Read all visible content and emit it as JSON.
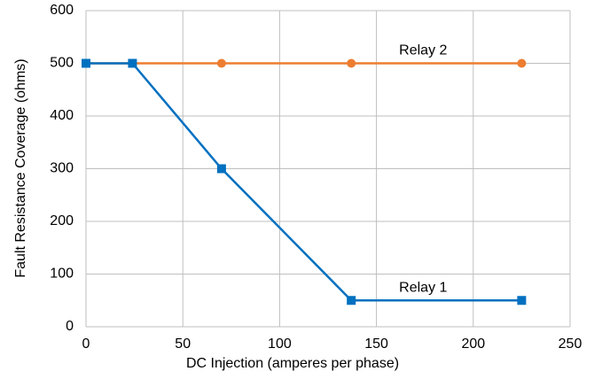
{
  "chart_data": {
    "type": "line",
    "xlabel": "DC Injection (amperes per phase)",
    "ylabel": "Fault Resistance Coverage (ohms)",
    "xlim": [
      0,
      250
    ],
    "xticks": [
      0,
      50,
      100,
      150,
      200,
      250
    ],
    "ylim": [
      0,
      600
    ],
    "yticks": [
      0,
      100,
      200,
      300,
      400,
      500,
      600
    ],
    "grid": true,
    "series": [
      {
        "name": "Relay 1",
        "color": "#0070c0",
        "marker": "square",
        "x": [
          0,
          24,
          70,
          137,
          225
        ],
        "values": [
          500,
          500,
          300,
          50,
          50
        ]
      },
      {
        "name": "Relay 2",
        "color": "#ed7d31",
        "marker": "circle",
        "x": [
          0,
          24,
          70,
          137,
          225
        ],
        "values": [
          500,
          500,
          500,
          500,
          500
        ]
      }
    ]
  }
}
